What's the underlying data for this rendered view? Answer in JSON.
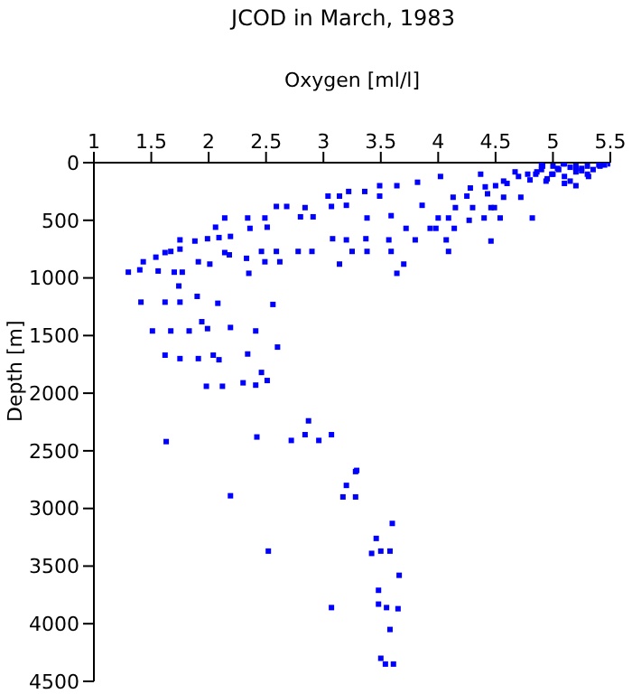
{
  "chart_data": {
    "type": "scatter",
    "title": "JCOD in March, 1983",
    "xlabel": "Oxygen [ml/l]",
    "ylabel": "Depth [m]",
    "xlim": [
      1,
      5.5
    ],
    "xticks": [
      1,
      1.5,
      2,
      2.5,
      3,
      3.5,
      4,
      4.5,
      5,
      5.5
    ],
    "ylim": [
      4500,
      0
    ],
    "yticks": [
      0,
      500,
      1000,
      1500,
      2000,
      2500,
      3000,
      3500,
      4000,
      4500
    ],
    "grid": false,
    "legend": false,
    "marker": "square",
    "series": [
      {
        "color": "#0000ff",
        "x": [
          5.45,
          5.4,
          5.3,
          5.2,
          5.1,
          5.0,
          4.9,
          5.0,
          5.1,
          5.2,
          5.3,
          4.8,
          4.9,
          5.05,
          5.15,
          5.25,
          5.35,
          4.85,
          4.95,
          5.1,
          5.2,
          4.7,
          4.6,
          4.5,
          4.02,
          4.37,
          4.28,
          4.13,
          3.86,
          3.82,
          3.64,
          3.49,
          3.36,
          3.22,
          3.14,
          3.04,
          3.2,
          3.07,
          2.84,
          2.68,
          2.59,
          2.91,
          2.8,
          2.49,
          2.34,
          2.14,
          2.51,
          2.36,
          2.06,
          2.19,
          2.09,
          1.99,
          1.88,
          1.75,
          1.75,
          1.67,
          1.62,
          1.54,
          1.43,
          1.3,
          1.4,
          1.56,
          1.7,
          1.77,
          1.91,
          2.01,
          2.14,
          2.18,
          2.33,
          2.35,
          2.46,
          2.59,
          2.49,
          2.62,
          2.78,
          2.9,
          3.08,
          3.2,
          3.25,
          3.38,
          3.37,
          3.57,
          3.14,
          3.59,
          3.7,
          3.64,
          3.49,
          3.38,
          3.59,
          3.72,
          3.8,
          3.93,
          4.0,
          4.09,
          4.27,
          4.4,
          4.54,
          4.07,
          4.09,
          4.46,
          3.98,
          4.14,
          4.82,
          4.46,
          4.57,
          4.72,
          4.41,
          4.57,
          4.67,
          4.78,
          4.43,
          4.49,
          4.91,
          5.09,
          5.25,
          5.41,
          5.5,
          4.99,
          5.15,
          5.31,
          4.94,
          5.04,
          5.2,
          4.86,
          4.25,
          4.15,
          4.3,
          1.74,
          1.41,
          1.62,
          1.75,
          1.9,
          2.08,
          2.56,
          1.51,
          1.67,
          1.83,
          1.94,
          1.99,
          2.19,
          2.41,
          2.6,
          1.62,
          1.75,
          1.91,
          2.04,
          2.09,
          2.34,
          2.46,
          2.51,
          1.98,
          2.12,
          2.3,
          2.41,
          2.87,
          2.84,
          2.96,
          3.07,
          2.72,
          2.42,
          1.63,
          3.28,
          3.2,
          3.17,
          3.28,
          2.19,
          3.29,
          3.6,
          3.46,
          3.5,
          3.58,
          3.42,
          2.52,
          3.66,
          3.48,
          3.48,
          3.55,
          3.65,
          3.07,
          3.58,
          3.5,
          3.54,
          3.61
        ],
        "values": [
          20,
          20,
          30,
          50,
          10,
          30,
          60,
          100,
          120,
          80,
          100,
          150,
          20,
          60,
          40,
          70,
          60,
          100,
          140,
          180,
          200,
          120,
          180,
          200,
          120,
          100,
          220,
          300,
          370,
          170,
          200,
          200,
          250,
          250,
          290,
          290,
          370,
          380,
          390,
          380,
          380,
          470,
          470,
          480,
          480,
          480,
          560,
          570,
          560,
          640,
          650,
          660,
          680,
          670,
          750,
          770,
          780,
          820,
          860,
          950,
          930,
          940,
          950,
          950,
          860,
          880,
          780,
          800,
          830,
          960,
          770,
          770,
          860,
          860,
          770,
          770,
          660,
          670,
          770,
          770,
          660,
          670,
          880,
          770,
          880,
          960,
          290,
          480,
          460,
          570,
          670,
          570,
          480,
          480,
          500,
          480,
          480,
          670,
          770,
          680,
          570,
          570,
          480,
          390,
          300,
          300,
          210,
          160,
          80,
          100,
          270,
          390,
          30,
          10,
          50,
          30,
          10,
          100,
          160,
          120,
          160,
          50,
          30,
          80,
          290,
          390,
          390,
          1070,
          1210,
          1210,
          1210,
          1160,
          1220,
          1230,
          1460,
          1460,
          1460,
          1380,
          1440,
          1430,
          1460,
          1600,
          1670,
          1700,
          1700,
          1670,
          1710,
          1660,
          1820,
          1890,
          1940,
          1940,
          1910,
          1930,
          2240,
          2360,
          2410,
          2360,
          2410,
          2380,
          2420,
          2680,
          2800,
          2900,
          2900,
          2890,
          2670,
          3130,
          3260,
          3370,
          3370,
          3390,
          3370,
          3580,
          3710,
          3830,
          3860,
          3870,
          3860,
          4050,
          4300,
          4350,
          4350
        ]
      }
    ]
  }
}
